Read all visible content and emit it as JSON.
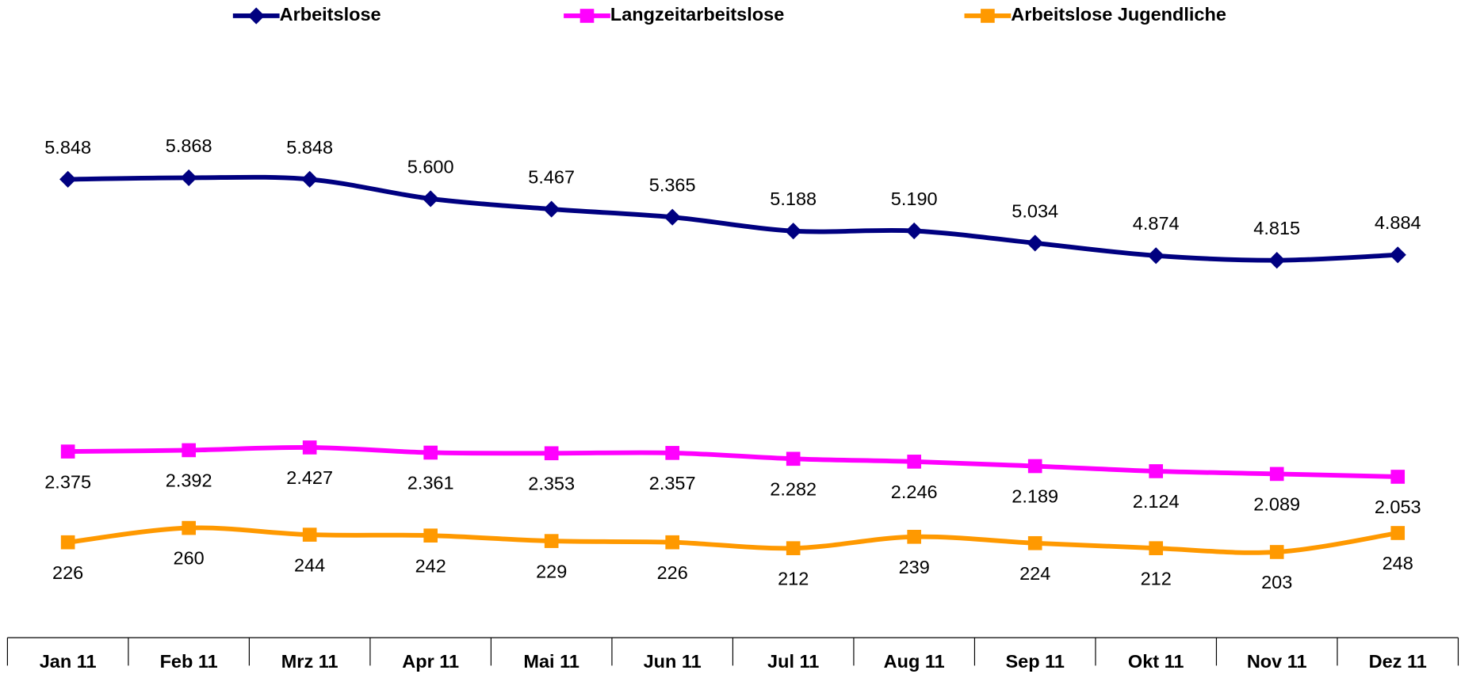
{
  "chart_data": {
    "type": "line",
    "categories": [
      "Jan 11",
      "Feb 11",
      "Mrz 11",
      "Apr 11",
      "Mai 11",
      "Jun 11",
      "Jul 11",
      "Aug 11",
      "Sep 11",
      "Okt 11",
      "Nov 11",
      "Dez 11"
    ],
    "ylim": [
      0,
      7000
    ],
    "y2lim": [
      0,
      1300
    ],
    "legend": "top",
    "series": [
      {
        "name": "Arbeitslose",
        "color": "#000080",
        "marker": "diamond",
        "label_position": "above",
        "values": [
          5848,
          5868,
          5848,
          5600,
          5467,
          5365,
          5188,
          5190,
          5034,
          4874,
          4815,
          4884
        ],
        "value_labels": [
          "5.848",
          "5.868",
          "5.848",
          "5.600",
          "5.467",
          "5.365",
          "5.188",
          "5.190",
          "5.034",
          "4.874",
          "4.815",
          "4.884"
        ]
      },
      {
        "name": "Langzeitarbeitslose",
        "color": "#ff00ff",
        "marker": "square",
        "label_position": "below",
        "values": [
          2375,
          2392,
          2427,
          2361,
          2353,
          2357,
          2282,
          2246,
          2189,
          2124,
          2089,
          2053
        ],
        "value_labels": [
          "2.375",
          "2.392",
          "2.427",
          "2.361",
          "2.353",
          "2.357",
          "2.282",
          "2.246",
          "2.189",
          "2.124",
          "2.089",
          "2.053"
        ]
      },
      {
        "name": "Arbeitslose Jugendliche",
        "color": "#ff9900",
        "marker": "square",
        "label_position": "below",
        "axis": "y2",
        "values": [
          226,
          260,
          244,
          242,
          229,
          226,
          212,
          239,
          224,
          212,
          203,
          248
        ]
      }
    ]
  }
}
